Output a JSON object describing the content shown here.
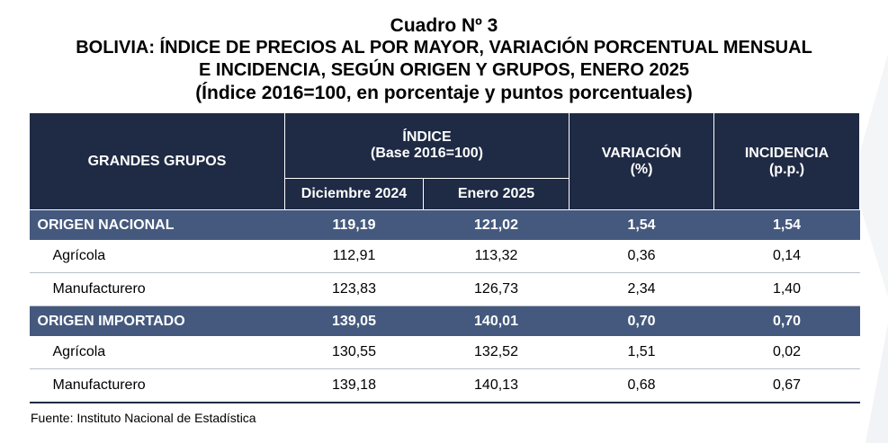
{
  "title": {
    "line1": "Cuadro Nº 3",
    "line2": "BOLIVIA: ÍNDICE DE PRECIOS AL POR MAYOR, VARIACIÓN PORCENTUAL MENSUAL",
    "line3": "E INCIDENCIA, SEGÚN ORIGEN Y GRUPOS, ENERO 2025",
    "line4": "(Índice 2016=100, en porcentaje y puntos porcentuales)"
  },
  "headers": {
    "grupos": "GRANDES GRUPOS",
    "indice": "ÍNDICE",
    "indice_base": "(Base 2016=100)",
    "dic": "Diciembre 2024",
    "ene": "Enero 2025",
    "variacion": "VARIACIÓN",
    "variacion_unit": "(%)",
    "incidencia": "INCIDENCIA",
    "incidencia_unit": "(p.p.)"
  },
  "rows": [
    {
      "name": "ORIGEN NACIONAL",
      "dic": "119,19",
      "ene": "121,02",
      "var": "1,54",
      "inc": "1,54"
    },
    {
      "name": "Agrícola",
      "dic": "112,91",
      "ene": "113,32",
      "var": "0,36",
      "inc": "0,14"
    },
    {
      "name": "Manufacturero",
      "dic": "123,83",
      "ene": "126,73",
      "var": "2,34",
      "inc": "1,40"
    },
    {
      "name": "ORIGEN IMPORTADO",
      "dic": "139,05",
      "ene": "140,01",
      "var": "0,70",
      "inc": "0,70"
    },
    {
      "name": "Agrícola",
      "dic": "130,55",
      "ene": "132,52",
      "var": "1,51",
      "inc": "0,02"
    },
    {
      "name": "Manufacturero",
      "dic": "139,18",
      "ene": "140,13",
      "var": "0,68",
      "inc": "0,67"
    }
  ],
  "source": "Fuente: Instituto Nacional de Estadística"
}
